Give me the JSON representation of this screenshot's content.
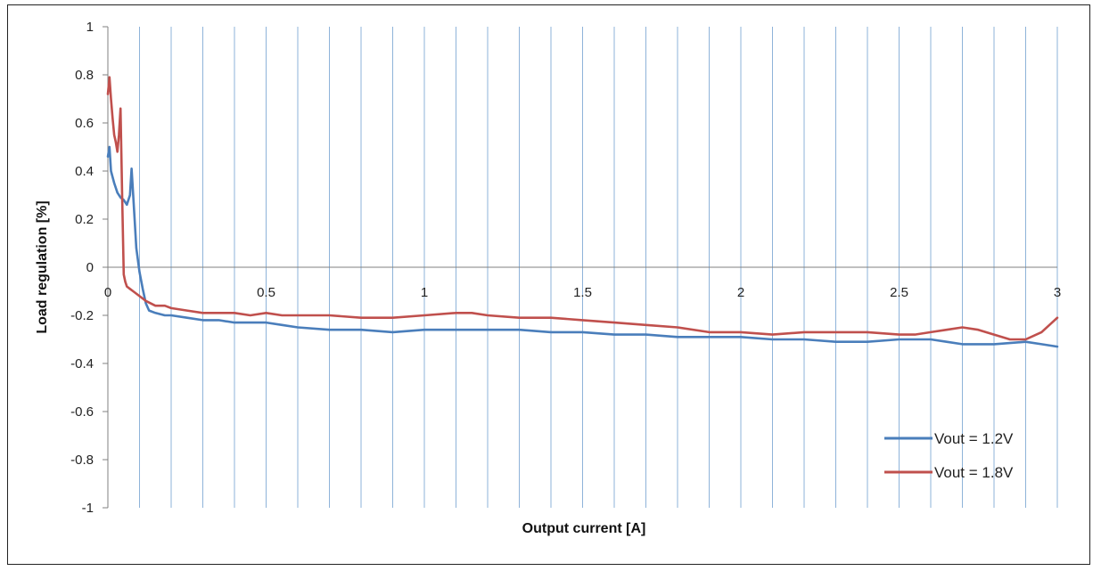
{
  "chart_data": {
    "type": "line",
    "xlabel": "Output current [A]",
    "ylabel": "Load regulation [%]",
    "xlim": [
      0,
      3
    ],
    "ylim": [
      -1,
      1
    ],
    "x_ticks": [
      0,
      0.5,
      1,
      1.5,
      2,
      2.5,
      3
    ],
    "x_tick_labels": [
      "0",
      "0.5",
      "1",
      "1.5",
      "2",
      "2.5",
      "3"
    ],
    "y_ticks": [
      1,
      0.8,
      0.6,
      0.4,
      0.2,
      0,
      -0.2,
      -0.4,
      -0.6,
      -0.8,
      -1
    ],
    "y_tick_labels": [
      "1",
      "0.8",
      "0.6",
      "0.4",
      "0.2",
      "0",
      "-0.2",
      "-0.4",
      "-0.6",
      "-0.8",
      "-1"
    ],
    "vertical_grid": true,
    "vertical_grid_step": 0.1,
    "horizontal_grid": false,
    "legend_position": "bottom-right",
    "series": [
      {
        "name": "Vout = 1.2V",
        "color": "#4a7ebb",
        "x": [
          0.0,
          0.005,
          0.01,
          0.02,
          0.03,
          0.04,
          0.05,
          0.06,
          0.07,
          0.075,
          0.08,
          0.09,
          0.1,
          0.11,
          0.12,
          0.13,
          0.15,
          0.18,
          0.2,
          0.25,
          0.3,
          0.35,
          0.4,
          0.45,
          0.5,
          0.55,
          0.6,
          0.7,
          0.8,
          0.9,
          1.0,
          1.1,
          1.2,
          1.3,
          1.4,
          1.5,
          1.6,
          1.7,
          1.8,
          1.9,
          2.0,
          2.1,
          2.2,
          2.3,
          2.4,
          2.5,
          2.6,
          2.65,
          2.7,
          2.8,
          2.9,
          2.95,
          3.0
        ],
        "y": [
          0.46,
          0.5,
          0.4,
          0.35,
          0.31,
          0.29,
          0.28,
          0.26,
          0.3,
          0.41,
          0.3,
          0.08,
          -0.02,
          -0.09,
          -0.15,
          -0.18,
          -0.19,
          -0.2,
          -0.2,
          -0.21,
          -0.22,
          -0.22,
          -0.23,
          -0.23,
          -0.23,
          -0.24,
          -0.25,
          -0.26,
          -0.26,
          -0.27,
          -0.26,
          -0.26,
          -0.26,
          -0.26,
          -0.27,
          -0.27,
          -0.28,
          -0.28,
          -0.29,
          -0.29,
          -0.29,
          -0.3,
          -0.3,
          -0.31,
          -0.31,
          -0.3,
          -0.3,
          -0.31,
          -0.32,
          -0.32,
          -0.31,
          -0.32,
          -0.33
        ]
      },
      {
        "name": "Vout = 1.8V",
        "color": "#c0504d",
        "x": [
          0.0,
          0.005,
          0.01,
          0.015,
          0.02,
          0.025,
          0.03,
          0.035,
          0.04,
          0.045,
          0.05,
          0.055,
          0.06,
          0.07,
          0.08,
          0.1,
          0.12,
          0.15,
          0.18,
          0.2,
          0.25,
          0.3,
          0.35,
          0.4,
          0.45,
          0.5,
          0.55,
          0.6,
          0.7,
          0.8,
          0.9,
          1.0,
          1.1,
          1.15,
          1.2,
          1.3,
          1.4,
          1.5,
          1.6,
          1.7,
          1.8,
          1.9,
          2.0,
          2.1,
          2.2,
          2.3,
          2.4,
          2.5,
          2.55,
          2.6,
          2.65,
          2.7,
          2.75,
          2.8,
          2.85,
          2.9,
          2.95,
          3.0
        ],
        "y": [
          0.72,
          0.79,
          0.7,
          0.62,
          0.55,
          0.52,
          0.48,
          0.55,
          0.66,
          0.3,
          -0.03,
          -0.06,
          -0.08,
          -0.09,
          -0.1,
          -0.12,
          -0.14,
          -0.16,
          -0.16,
          -0.17,
          -0.18,
          -0.19,
          -0.19,
          -0.19,
          -0.2,
          -0.19,
          -0.2,
          -0.2,
          -0.2,
          -0.21,
          -0.21,
          -0.2,
          -0.19,
          -0.19,
          -0.2,
          -0.21,
          -0.21,
          -0.22,
          -0.23,
          -0.24,
          -0.25,
          -0.27,
          -0.27,
          -0.28,
          -0.27,
          -0.27,
          -0.27,
          -0.28,
          -0.28,
          -0.27,
          -0.26,
          -0.25,
          -0.26,
          -0.28,
          -0.3,
          -0.3,
          -0.27,
          -0.21
        ]
      }
    ]
  }
}
